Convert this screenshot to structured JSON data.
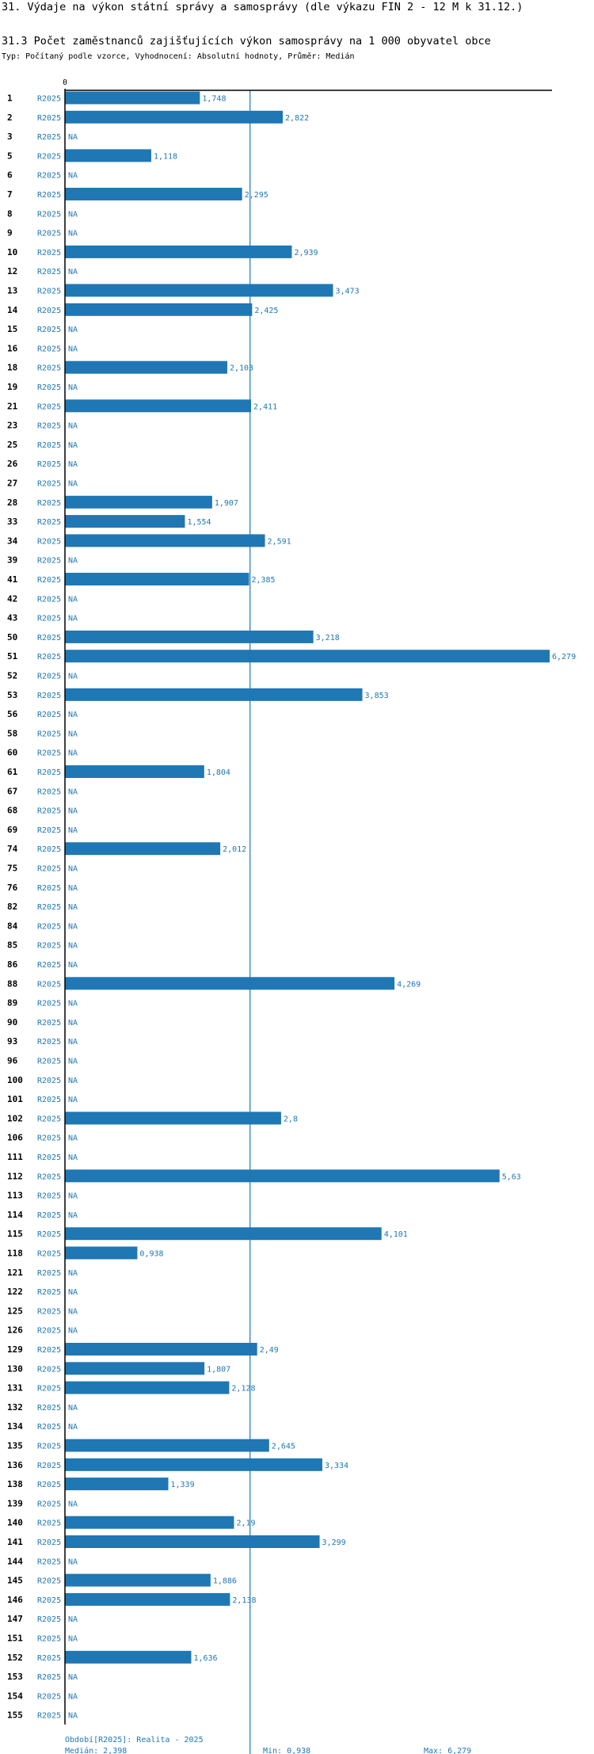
{
  "page": {
    "title": "31. Výdaje na výkon státní správy a samosprávy (dle výkazu FIN 2 - 12 M k 31.12.)",
    "subtitle": "31.3 Počet zaměstnanců zajišťujících výkon samosprávy na 1 000 obyvatel obce",
    "info": "Typ: Počítaný podle vzorce, Vyhodnocení: Absolutní hodnoty, Průměr: Medián"
  },
  "colors": {
    "bar": "#1f77b4",
    "text": "#1f77b4",
    "axis": "#000000"
  },
  "chart_data": {
    "type": "bar",
    "orientation": "horizontal",
    "axis_tick": "0",
    "xlim": [
      0,
      6.279
    ],
    "period": "R2025",
    "na_label": "NA",
    "median": 2.398,
    "categories": [
      "1",
      "2",
      "3",
      "5",
      "6",
      "7",
      "8",
      "9",
      "10",
      "12",
      "13",
      "14",
      "15",
      "16",
      "18",
      "19",
      "21",
      "23",
      "25",
      "26",
      "27",
      "28",
      "33",
      "34",
      "39",
      "41",
      "42",
      "43",
      "50",
      "51",
      "52",
      "53",
      "56",
      "58",
      "60",
      "61",
      "67",
      "68",
      "69",
      "74",
      "75",
      "76",
      "82",
      "84",
      "85",
      "86",
      "88",
      "89",
      "90",
      "93",
      "96",
      "100",
      "101",
      "102",
      "106",
      "111",
      "112",
      "113",
      "114",
      "115",
      "118",
      "121",
      "122",
      "125",
      "126",
      "129",
      "130",
      "131",
      "132",
      "134",
      "135",
      "136",
      "138",
      "139",
      "140",
      "141",
      "144",
      "145",
      "146",
      "147",
      "151",
      "152",
      "153",
      "154",
      "155"
    ],
    "values": [
      1.748,
      2.822,
      null,
      1.118,
      null,
      2.295,
      null,
      null,
      2.939,
      null,
      3.473,
      2.425,
      null,
      null,
      2.103,
      null,
      2.411,
      null,
      null,
      null,
      null,
      1.907,
      1.554,
      2.591,
      null,
      2.385,
      null,
      null,
      3.218,
      6.279,
      null,
      3.853,
      null,
      null,
      null,
      1.804,
      null,
      null,
      null,
      2.012,
      null,
      null,
      null,
      null,
      null,
      null,
      4.269,
      null,
      null,
      null,
      null,
      null,
      null,
      2.8,
      null,
      null,
      5.63,
      null,
      null,
      4.101,
      0.938,
      null,
      null,
      null,
      null,
      2.49,
      1.807,
      2.128,
      null,
      null,
      2.645,
      3.334,
      1.339,
      null,
      2.19,
      3.299,
      null,
      1.886,
      2.138,
      null,
      null,
      1.636,
      null,
      null,
      null
    ],
    "value_labels": [
      "1,748",
      "2,822",
      "NA",
      "1,118",
      "NA",
      "2,295",
      "NA",
      "NA",
      "2,939",
      "NA",
      "3,473",
      "2,425",
      "NA",
      "NA",
      "2,103",
      "NA",
      "2,411",
      "NA",
      "NA",
      "NA",
      "NA",
      "1,907",
      "1,554",
      "2,591",
      "NA",
      "2,385",
      "NA",
      "NA",
      "3,218",
      "6,279",
      "NA",
      "3,853",
      "NA",
      "NA",
      "NA",
      "1,804",
      "NA",
      "NA",
      "NA",
      "2,012",
      "NA",
      "NA",
      "NA",
      "NA",
      "NA",
      "NA",
      "4,269",
      "NA",
      "NA",
      "NA",
      "NA",
      "NA",
      "NA",
      "2,8",
      "NA",
      "NA",
      "5,63",
      "NA",
      "NA",
      "4,101",
      "0,938",
      "NA",
      "NA",
      "NA",
      "NA",
      "2,49",
      "1,807",
      "2,128",
      "NA",
      "NA",
      "2,645",
      "3,334",
      "1,339",
      "NA",
      "2,19",
      "3,299",
      "NA",
      "1,886",
      "2,138",
      "NA",
      "NA",
      "1,636",
      "NA",
      "NA",
      "NA"
    ],
    "footer": {
      "period_note": "Období[R2025]: Realita - 2025",
      "median": "Medián: 2,398",
      "min": "Min: 0,938",
      "max": "Max: 6,279"
    }
  }
}
